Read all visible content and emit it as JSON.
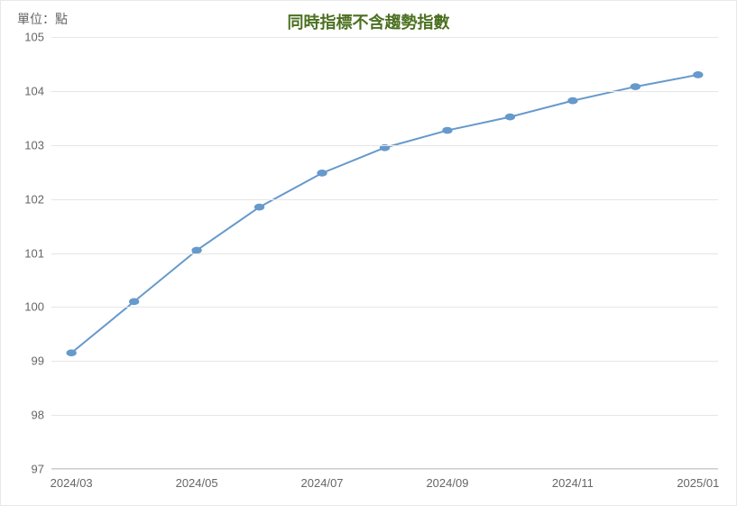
{
  "chart": {
    "type": "line",
    "unit_label": "單位：點",
    "title": "同時指標不含趨勢指數",
    "title_color": "#4b7020",
    "title_fontsize": 18,
    "label_color": "#666666",
    "label_fontsize": 13,
    "background_color": "#ffffff",
    "grid_color": "#e6e6e6",
    "axis_color": "#cccccc",
    "line_color": "#6699cc",
    "marker_color": "#6699cc",
    "marker_size": 4,
    "line_width": 2,
    "x_categories": [
      "2024/03",
      "2024/04",
      "2024/05",
      "2024/06",
      "2024/07",
      "2024/08",
      "2024/09",
      "2024/10",
      "2024/11",
      "2024/12",
      "2025/01"
    ],
    "x_tick_labels": [
      "2024/03",
      "2024/05",
      "2024/07",
      "2024/09",
      "2024/11",
      "2025/01"
    ],
    "x_tick_indices": [
      0,
      2,
      4,
      6,
      8,
      10
    ],
    "values": [
      99.15,
      100.1,
      101.05,
      101.85,
      102.48,
      102.95,
      103.27,
      103.52,
      103.82,
      104.08,
      104.3
    ],
    "ylim": [
      97,
      105
    ],
    "ytick_step": 1,
    "y_ticks": [
      97,
      98,
      99,
      100,
      101,
      102,
      103,
      104,
      105
    ]
  }
}
